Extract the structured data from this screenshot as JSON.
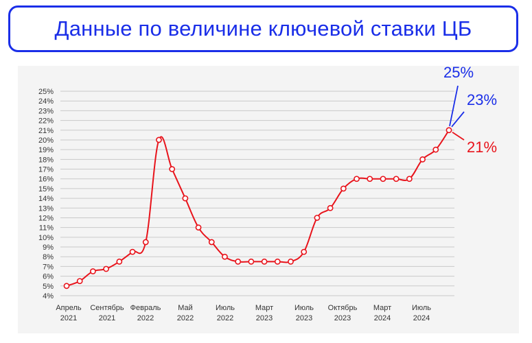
{
  "title": "Данные по величине ключевой ставки ЦБ",
  "colors": {
    "title": "#1a2ee8",
    "line": "#e8131b",
    "annotation_blue": "#1a2ee8",
    "annotation_red": "#e8131b",
    "grid": "#c9c9c9"
  },
  "chart_data": {
    "type": "line",
    "title": "",
    "xlabel": "",
    "ylabel": "",
    "ylim": [
      4,
      25
    ],
    "y_ticks": [
      "4%",
      "5%",
      "6%",
      "7%",
      "8%",
      "9%",
      "10%",
      "11%",
      "12%",
      "13%",
      "14%",
      "15%",
      "16%",
      "17%",
      "18%",
      "19%",
      "20%",
      "21%",
      "22%",
      "23%",
      "24%",
      "25%"
    ],
    "x_ticks": [
      {
        "line1": "Апрель",
        "line2": "2021"
      },
      {
        "line1": "Сентябрь",
        "line2": "2021"
      },
      {
        "line1": "Февраль",
        "line2": "2022"
      },
      {
        "line1": "Май",
        "line2": "2022"
      },
      {
        "line1": "Июль",
        "line2": "2022"
      },
      {
        "line1": "Март",
        "line2": "2023"
      },
      {
        "line1": "Июль",
        "line2": "2023"
      },
      {
        "line1": "Октябрь",
        "line2": "2023"
      },
      {
        "line1": "Март",
        "line2": "2024"
      },
      {
        "line1": "Июль",
        "line2": "2024"
      }
    ],
    "series": [
      {
        "values": [
          5,
          5.5,
          6.5,
          6.75,
          7.5,
          8.5,
          9.5,
          20,
          17,
          14,
          11,
          9.5,
          8,
          7.5,
          7.5,
          7.5,
          7.5,
          7.5,
          8.5,
          12,
          13,
          15,
          16,
          16,
          16,
          16,
          16,
          18,
          19,
          21
        ]
      }
    ],
    "annotations": [
      {
        "text": "25%",
        "color": "blue"
      },
      {
        "text": "23%",
        "color": "blue"
      },
      {
        "text": "21%",
        "color": "red"
      }
    ],
    "grid": true,
    "legend": "none"
  }
}
